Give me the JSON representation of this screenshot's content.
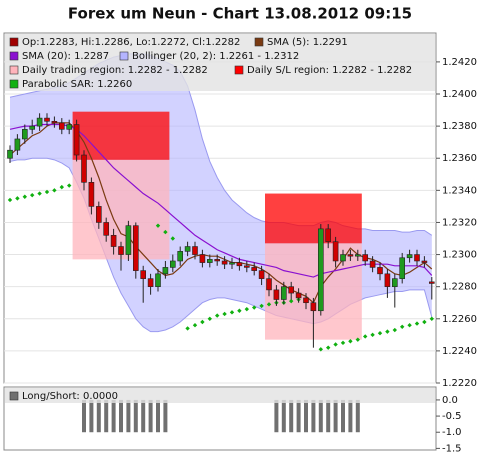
{
  "chart_data": [
    {
      "type": "candlestick",
      "title": "Forex um Neun - Chart 13.08.2012 09:15",
      "ylim": [
        1.222,
        1.2438
      ],
      "yticks": [
        {
          "value": 1.222,
          "label": "1.2220"
        },
        {
          "value": 1.224,
          "label": "1.2240"
        },
        {
          "value": 1.226,
          "label": "1.2260"
        },
        {
          "value": 1.228,
          "label": "1.2280"
        },
        {
          "value": 1.23,
          "label": "1.2300"
        },
        {
          "value": 1.232,
          "label": "1.2320"
        },
        {
          "value": 1.234,
          "label": "1.2340"
        },
        {
          "value": 1.236,
          "label": "1.2360"
        },
        {
          "value": 1.238,
          "label": "1.2380"
        },
        {
          "value": 1.24,
          "label": "1.2400"
        },
        {
          "value": 1.242,
          "label": "1.2420"
        }
      ],
      "grid": true,
      "candles": {
        "name": "Op:1.2283, Hi:1.2286, Lo:1.2272, Cl:1.2282",
        "color": "#a00000",
        "up_color": "#1f9a1f",
        "down_color": "#d00000",
        "open": [
          1.236,
          1.2365,
          1.2372,
          1.2378,
          1.238,
          1.2385,
          1.2383,
          1.2382,
          1.2378,
          1.2381,
          1.2362,
          1.2345,
          1.233,
          1.232,
          1.2312,
          1.2305,
          1.23,
          1.2318,
          1.229,
          1.2285,
          1.228,
          1.2288,
          1.2292,
          1.2296,
          1.2302,
          1.2305,
          1.23,
          1.2295,
          1.2297,
          1.2296,
          1.2294,
          1.2295,
          1.2293,
          1.2292,
          1.229,
          1.2285,
          1.2278,
          1.2272,
          1.228,
          1.2276,
          1.2273,
          1.227,
          1.2265,
          1.2316,
          1.2308,
          1.2296,
          1.23,
          1.2299,
          1.23,
          1.2296,
          1.2292,
          1.2288,
          1.228,
          1.2285,
          1.2298,
          1.23,
          1.2296,
          1.2283
        ],
        "high": [
          1.2368,
          1.2375,
          1.2381,
          1.2384,
          1.2388,
          1.2388,
          1.2386,
          1.2385,
          1.2384,
          1.2384,
          1.2365,
          1.2348,
          1.2333,
          1.2323,
          1.2316,
          1.2308,
          1.2321,
          1.232,
          1.2293,
          1.2288,
          1.2291,
          1.2296,
          1.23,
          1.2305,
          1.2308,
          1.2308,
          1.2303,
          1.23,
          1.23,
          1.2299,
          1.2298,
          1.2298,
          1.2296,
          1.2295,
          1.2293,
          1.2288,
          1.2281,
          1.2283,
          1.2283,
          1.2279,
          1.2276,
          1.2273,
          1.2319,
          1.2319,
          1.2311,
          1.2303,
          1.2303,
          1.2303,
          1.2303,
          1.2299,
          1.2295,
          1.2291,
          1.2288,
          1.2301,
          1.2303,
          1.2303,
          1.2299,
          1.2286
        ],
        "low": [
          1.2357,
          1.2362,
          1.2369,
          1.2375,
          1.2377,
          1.238,
          1.2379,
          1.2375,
          1.2375,
          1.2358,
          1.234,
          1.2325,
          1.2316,
          1.2308,
          1.23,
          1.229,
          1.2296,
          1.2285,
          1.227,
          1.2275,
          1.2277,
          1.2285,
          1.2289,
          1.2293,
          1.2299,
          1.2297,
          1.2292,
          1.2292,
          1.2293,
          1.2291,
          1.2291,
          1.229,
          1.2289,
          1.2287,
          1.2281,
          1.2274,
          1.2268,
          1.2269,
          1.2272,
          1.227,
          1.2266,
          1.2242,
          1.2262,
          1.2304,
          1.2292,
          1.2293,
          1.2296,
          1.2296,
          1.2293,
          1.2289,
          1.2284,
          1.2273,
          1.2267,
          1.2282,
          1.2295,
          1.2293,
          1.2292,
          1.2272
        ],
        "close": [
          1.2365,
          1.2372,
          1.2378,
          1.238,
          1.2385,
          1.2383,
          1.2382,
          1.2378,
          1.2381,
          1.2362,
          1.2345,
          1.233,
          1.232,
          1.2312,
          1.2305,
          1.23,
          1.2318,
          1.229,
          1.2285,
          1.228,
          1.2288,
          1.2292,
          1.2296,
          1.2302,
          1.2305,
          1.23,
          1.2295,
          1.2297,
          1.2296,
          1.2294,
          1.2295,
          1.2293,
          1.2292,
          1.229,
          1.2285,
          1.2278,
          1.2272,
          1.228,
          1.2276,
          1.2273,
          1.227,
          1.2265,
          1.2316,
          1.2308,
          1.2296,
          1.23,
          1.2299,
          1.23,
          1.2296,
          1.2292,
          1.2288,
          1.228,
          1.2285,
          1.2298,
          1.23,
          1.2296,
          1.2295,
          1.2282
        ]
      },
      "series": [
        {
          "name": "SMA (5): 1.2291",
          "color": "#7a3a12",
          "values": [
            1.2362,
            1.2366,
            1.237,
            1.2374,
            1.2376,
            1.238,
            1.2382,
            1.2382,
            1.2382,
            1.2377,
            1.237,
            1.236,
            1.2348,
            1.2334,
            1.2322,
            1.2313,
            1.2311,
            1.2305,
            1.23,
            1.2295,
            1.229,
            1.2287,
            1.2288,
            1.2292,
            1.2297,
            1.2299,
            1.23,
            1.2299,
            1.2299,
            1.2297,
            1.2295,
            1.2295,
            1.2294,
            1.2293,
            1.2291,
            1.2288,
            1.2284,
            1.2281,
            1.2278,
            1.2276,
            1.2274,
            1.227,
            1.228,
            1.2286,
            1.2291,
            1.2297,
            1.2304,
            1.23,
            1.2298,
            1.2297,
            1.2295,
            1.2291,
            1.2288,
            1.2287,
            1.2289,
            1.2292,
            1.2295,
            1.2291
          ]
        },
        {
          "name": "SMA (20): 1.2287",
          "color": "#8a10d0",
          "values": [
            1.2378,
            1.2379,
            1.238,
            1.238,
            1.2381,
            1.2381,
            1.2381,
            1.2381,
            1.238,
            1.2378,
            1.2374,
            1.2369,
            1.2364,
            1.2359,
            1.2354,
            1.235,
            1.2346,
            1.2342,
            1.2338,
            1.2335,
            1.2332,
            1.2328,
            1.2324,
            1.232,
            1.2316,
            1.2312,
            1.2309,
            1.2306,
            1.2303,
            1.2301,
            1.2299,
            1.2297,
            1.2296,
            1.2295,
            1.2294,
            1.2293,
            1.2292,
            1.229,
            1.2289,
            1.2288,
            1.2287,
            1.2286,
            1.2288,
            1.2289,
            1.229,
            1.2291,
            1.2292,
            1.2293,
            1.2294,
            1.2294,
            1.2294,
            1.2294,
            1.2293,
            1.2293,
            1.2293,
            1.2293,
            1.2292,
            1.2287
          ]
        }
      ],
      "bollinger": {
        "name": "Bollinger (20, 2): 1.2261 - 1.2312",
        "color": "#b4b4ff",
        "line_color": "#9a9af0",
        "upper": [
          1.2398,
          1.2399,
          1.24,
          1.2401,
          1.2402,
          1.2403,
          1.2404,
          1.2405,
          1.2407,
          1.241,
          1.2413,
          1.2416,
          1.2419,
          1.2421,
          1.2423,
          1.2424,
          1.2425,
          1.2425,
          1.2425,
          1.2424,
          1.2422,
          1.242,
          1.2418,
          1.2414,
          1.2405,
          1.239,
          1.2372,
          1.2358,
          1.2348,
          1.234,
          1.2334,
          1.233,
          1.2326,
          1.2323,
          1.2321,
          1.232,
          1.232,
          1.232,
          1.2319,
          1.2318,
          1.2318,
          1.2318,
          1.232,
          1.2321,
          1.232,
          1.2318,
          1.2317,
          1.2316,
          1.2316,
          1.2315,
          1.2315,
          1.2315,
          1.2315,
          1.2314,
          1.2314,
          1.2315,
          1.2315,
          1.2312
        ],
        "lower": [
          1.2358,
          1.2359,
          1.2359,
          1.236,
          1.236,
          1.236,
          1.2359,
          1.2357,
          1.2354,
          1.2345,
          1.2335,
          1.2322,
          1.231,
          1.2298,
          1.2286,
          1.2276,
          1.2268,
          1.226,
          1.2255,
          1.2252,
          1.2252,
          1.2253,
          1.2255,
          1.2258,
          1.2262,
          1.2266,
          1.227,
          1.2272,
          1.2273,
          1.2273,
          1.2272,
          1.2271,
          1.227,
          1.2268,
          1.2266,
          1.2264,
          1.2262,
          1.2261,
          1.226,
          1.2259,
          1.2258,
          1.2257,
          1.2258,
          1.226,
          1.2263,
          1.2266,
          1.2269,
          1.2271,
          1.2273,
          1.2274,
          1.2275,
          1.2276,
          1.2277,
          1.2277,
          1.2278,
          1.2278,
          1.2278,
          1.2261
        ]
      },
      "regions": [
        {
          "name": "Daily trading region: 1.2282 - 1.2282",
          "color": "#ffb4bc",
          "spans": [
            {
              "start": 9,
              "end": 21,
              "low": 1.2297,
              "high": 1.2359
            },
            {
              "start": 35,
              "end": 47,
              "low": 1.2247,
              "high": 1.2307
            }
          ]
        },
        {
          "name": "Daily S/L region: 1.2282 - 1.2282",
          "color": "#ff0000",
          "spans": [
            {
              "start": 9,
              "end": 21,
              "low": 1.2359,
              "high": 1.2389
            },
            {
              "start": 35,
              "end": 47,
              "low": 1.2307,
              "high": 1.2338
            }
          ]
        }
      ],
      "sar": {
        "name": "Parabolic SAR: 1.2260",
        "color": "#10b010",
        "values": [
          1.2334,
          1.2335,
          1.2336,
          1.2337,
          1.2338,
          1.2339,
          1.234,
          1.2342,
          1.2343,
          null,
          null,
          null,
          null,
          null,
          null,
          null,
          null,
          null,
          null,
          null,
          1.2318,
          1.2314,
          1.231,
          null,
          1.2254,
          1.2256,
          1.2258,
          1.226,
          1.2262,
          1.2263,
          1.2264,
          1.2265,
          1.2266,
          1.2267,
          1.2268,
          1.2269,
          1.227,
          1.227,
          1.2271,
          1.2272,
          1.2272,
          null,
          1.2241,
          1.2242,
          1.2244,
          1.2245,
          1.2246,
          1.2247,
          1.2249,
          1.225,
          1.2251,
          1.2252,
          1.2253,
          1.2255,
          1.2256,
          1.2257,
          1.2258,
          1.226
        ]
      }
    },
    {
      "type": "bar",
      "ylim": [
        -1.55,
        0.4
      ],
      "yticks": [
        {
          "value": 0,
          "label": "0.0"
        },
        -0.5,
        {
          "value": -1,
          "label": "-1.0"
        },
        -1.5
      ],
      "series": [
        {
          "name": "Long/Short: 0.0000",
          "color": "#707070",
          "values": [
            0,
            0,
            0,
            0,
            0,
            0,
            0,
            0,
            0,
            0,
            -1,
            -1,
            -1,
            -1,
            -1,
            -1,
            -1,
            -1,
            -1,
            -1,
            -1,
            -1,
            0,
            0,
            0,
            0,
            0,
            0,
            0,
            0,
            0,
            0,
            0,
            0,
            0,
            0,
            -1,
            -1,
            -1,
            -1,
            -1,
            -1,
            -1,
            -1,
            -1,
            -1,
            -1,
            -1,
            0,
            0,
            0,
            0,
            0,
            0,
            0,
            0,
            0,
            0
          ]
        }
      ]
    }
  ]
}
